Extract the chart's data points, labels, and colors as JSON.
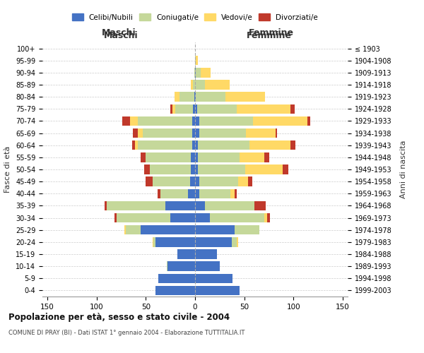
{
  "age_groups": [
    "0-4",
    "5-9",
    "10-14",
    "15-19",
    "20-24",
    "25-29",
    "30-34",
    "35-39",
    "40-44",
    "45-49",
    "50-54",
    "55-59",
    "60-64",
    "65-69",
    "70-74",
    "75-79",
    "80-84",
    "85-89",
    "90-94",
    "95-99",
    "100+"
  ],
  "birth_years": [
    "1999-2003",
    "1994-1998",
    "1989-1993",
    "1984-1988",
    "1979-1983",
    "1974-1978",
    "1969-1973",
    "1964-1968",
    "1959-1963",
    "1954-1958",
    "1949-1953",
    "1944-1948",
    "1939-1943",
    "1934-1938",
    "1929-1933",
    "1924-1928",
    "1919-1923",
    "1914-1918",
    "1909-1913",
    "1904-1908",
    "≤ 1903"
  ],
  "males": {
    "celibi": [
      40,
      37,
      28,
      18,
      40,
      55,
      25,
      30,
      7,
      5,
      4,
      4,
      3,
      3,
      3,
      2,
      1,
      0,
      0,
      0,
      0
    ],
    "coniugati": [
      0,
      0,
      1,
      0,
      2,
      15,
      55,
      60,
      28,
      38,
      42,
      46,
      55,
      50,
      55,
      18,
      15,
      2,
      1,
      0,
      0
    ],
    "vedovi": [
      0,
      0,
      0,
      0,
      1,
      2,
      0,
      0,
      0,
      0,
      0,
      0,
      3,
      5,
      8,
      3,
      5,
      2,
      0,
      0,
      0
    ],
    "divorziati": [
      0,
      0,
      0,
      0,
      0,
      0,
      2,
      2,
      3,
      7,
      6,
      5,
      3,
      5,
      8,
      2,
      0,
      0,
      0,
      0,
      0
    ]
  },
  "females": {
    "nubili": [
      45,
      38,
      25,
      22,
      37,
      40,
      15,
      10,
      4,
      4,
      3,
      3,
      3,
      4,
      4,
      2,
      1,
      0,
      1,
      0,
      0
    ],
    "coniugate": [
      0,
      0,
      0,
      0,
      5,
      25,
      55,
      50,
      32,
      40,
      48,
      42,
      52,
      48,
      55,
      40,
      30,
      10,
      5,
      1,
      0
    ],
    "vedove": [
      0,
      0,
      0,
      0,
      2,
      0,
      3,
      0,
      4,
      10,
      38,
      25,
      42,
      30,
      55,
      55,
      40,
      25,
      10,
      2,
      0
    ],
    "divorziate": [
      0,
      0,
      0,
      0,
      0,
      0,
      3,
      12,
      2,
      4,
      6,
      5,
      5,
      1,
      3,
      4,
      0,
      0,
      0,
      0,
      0
    ]
  },
  "colors": {
    "celibi": "#4472c4",
    "coniugati": "#c5d89a",
    "vedovi": "#ffd966",
    "divorziati": "#c0392b"
  },
  "xlim": 155,
  "title": "Popolazione per età, sesso e stato civile - 2004",
  "subtitle": "COMUNE DI PRAY (BI) - Dati ISTAT 1° gennaio 2004 - Elaborazione TUTTITALIA.IT",
  "ylabel_left": "Fasce di età",
  "ylabel_right": "Anni di nascita",
  "xlabel_left": "Maschi",
  "xlabel_right": "Femmine",
  "legend_labels": [
    "Celibi/Nubili",
    "Coniugati/e",
    "Vedovi/e",
    "Divorziati/e"
  ],
  "bg_color": "#ffffff",
  "grid_color": "#cccccc"
}
